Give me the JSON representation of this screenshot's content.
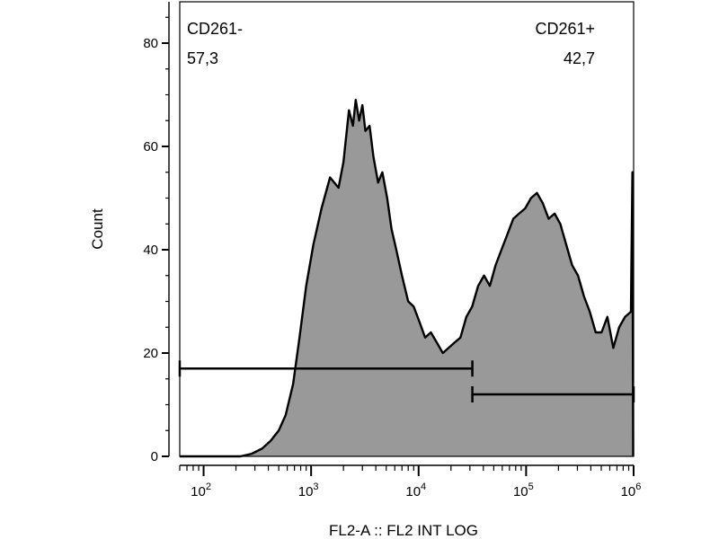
{
  "chart_data": {
    "type": "area",
    "xlabel": "FL2-A :: FL2 INT LOG",
    "ylabel": "Count",
    "x_scale": "log",
    "xlim": [
      60,
      1000000
    ],
    "ylim": [
      0,
      88
    ],
    "x_ticks": [
      {
        "value": 100,
        "base": "10",
        "exp": "2"
      },
      {
        "value": 1000,
        "base": "10",
        "exp": "3"
      },
      {
        "value": 10000,
        "base": "10",
        "exp": "4"
      },
      {
        "value": 100000,
        "base": "10",
        "exp": "5"
      },
      {
        "value": 1000000,
        "base": "10",
        "exp": "6"
      }
    ],
    "y_ticks": [
      "0",
      "20",
      "40",
      "60",
      "80"
    ],
    "grid": false,
    "fill_color": "#999999",
    "line_color": "#000000",
    "series": [
      {
        "x": [
          60,
          220,
          280,
          350,
          420,
          500,
          580,
          680,
          780,
          900,
          1050,
          1250,
          1500,
          1800,
          2000,
          2250,
          2450,
          2600,
          2800,
          3000,
          3200,
          3500,
          3800,
          4200,
          4600,
          5100,
          5600,
          6200,
          7000,
          8000,
          9000,
          10200,
          11500,
          13000,
          14800,
          16800,
          19000,
          21500,
          24500,
          27800,
          31500,
          35800,
          40600,
          46000,
          52000,
          59000,
          67000,
          76000,
          86000,
          98000,
          111000,
          126000,
          143000,
          162000,
          184000,
          208000,
          236000,
          268000,
          304000,
          345000,
          391000,
          444000,
          503000,
          570000,
          647000,
          734000,
          832000,
          944000,
          955000,
          975000,
          990000
        ],
        "y": [
          0,
          0,
          0.5,
          1.5,
          3,
          5,
          8,
          14,
          23,
          33,
          41,
          48,
          54,
          52,
          57,
          67,
          64,
          69,
          65,
          68,
          63,
          64,
          58,
          53,
          55,
          50,
          44,
          40,
          35,
          30,
          29,
          26,
          23,
          24,
          22,
          20,
          21,
          22,
          23,
          27,
          29,
          33,
          35,
          33,
          37,
          40,
          43,
          46,
          47,
          48,
          50,
          51,
          49,
          46,
          47,
          45,
          41,
          37,
          35,
          31,
          28,
          24,
          24,
          27,
          21,
          25,
          27,
          28,
          38,
          55,
          0
        ]
      }
    ],
    "gates": [
      {
        "name": "CD261-",
        "label": "CD261-",
        "percent": "57,3",
        "x_from": 60,
        "x_to": 31622,
        "y": 17
      },
      {
        "name": "CD261+",
        "label": "CD261+",
        "percent": "42,7",
        "x_from": 31622,
        "x_to": 1000000,
        "y": 12
      }
    ]
  }
}
